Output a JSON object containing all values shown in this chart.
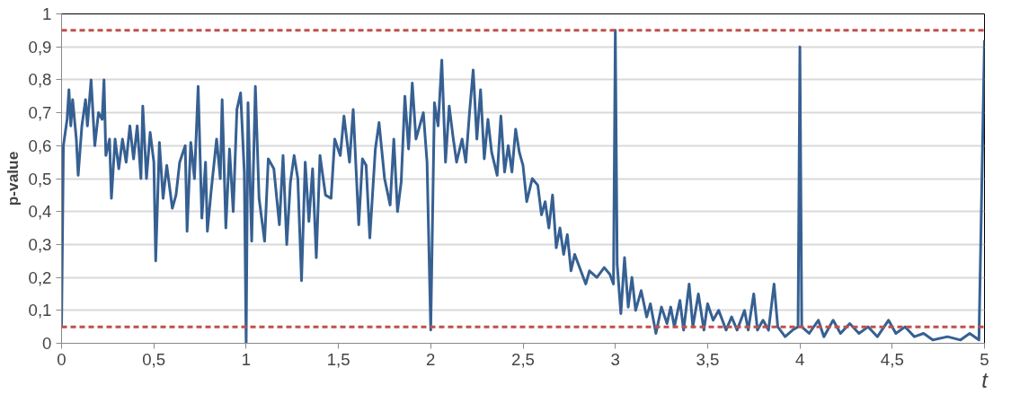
{
  "chart_data": {
    "type": "line",
    "xlabel": "t",
    "ylabel": "p-value",
    "xlim": [
      0,
      5
    ],
    "ylim": [
      0,
      1
    ],
    "xticks": [
      0,
      {
        "value": 0.5,
        "label": "0,5"
      },
      1,
      {
        "value": 1.5,
        "label": "1,5"
      },
      2,
      {
        "value": 2.5,
        "label": "2,5"
      },
      3,
      {
        "value": 3.5,
        "label": "3,5"
      },
      4,
      {
        "value": 4.5,
        "label": "4,5"
      },
      5
    ],
    "yticks": [
      0,
      {
        "value": 0.1,
        "label": "0,1"
      },
      {
        "value": 0.2,
        "label": "0,2"
      },
      {
        "value": 0.3,
        "label": "0,3"
      },
      {
        "value": 0.4,
        "label": "0,4"
      },
      {
        "value": 0.5,
        "label": "0,5"
      },
      {
        "value": 0.6,
        "label": "0,6"
      },
      {
        "value": 0.7,
        "label": "0,7"
      },
      {
        "value": 0.8,
        "label": "0,8"
      },
      {
        "value": 0.9,
        "label": "0,9"
      },
      1
    ],
    "grid": "y",
    "marker": "none",
    "line_style": "solid",
    "ref_lines": [
      {
        "axis": "y",
        "value": 0.05,
        "color": "#c0504d",
        "line_style": "dashed"
      },
      {
        "axis": "y",
        "value": 0.95,
        "color": "#c0504d",
        "line_style": "dashed"
      }
    ],
    "series": [
      {
        "color": "#366092",
        "x": [
          0,
          0.01,
          0.03,
          0.04,
          0.05,
          0.06,
          0.08,
          0.09,
          0.11,
          0.13,
          0.14,
          0.16,
          0.18,
          0.2,
          0.22,
          0.23,
          0.24,
          0.26,
          0.27,
          0.29,
          0.31,
          0.33,
          0.35,
          0.37,
          0.39,
          0.41,
          0.43,
          0.44,
          0.46,
          0.48,
          0.5,
          0.51,
          0.53,
          0.55,
          0.57,
          0.6,
          0.62,
          0.64,
          0.67,
          0.68,
          0.7,
          0.72,
          0.74,
          0.76,
          0.78,
          0.79,
          0.81,
          0.84,
          0.86,
          0.87,
          0.89,
          0.91,
          0.93,
          0.95,
          0.97,
          0.99,
          1.0,
          1.01,
          1.03,
          1.05,
          1.07,
          1.1,
          1.12,
          1.15,
          1.18,
          1.2,
          1.22,
          1.24,
          1.26,
          1.28,
          1.3,
          1.32,
          1.34,
          1.36,
          1.38,
          1.4,
          1.43,
          1.46,
          1.48,
          1.51,
          1.53,
          1.56,
          1.58,
          1.61,
          1.63,
          1.65,
          1.67,
          1.7,
          1.72,
          1.75,
          1.78,
          1.8,
          1.82,
          1.84,
          1.86,
          1.88,
          1.9,
          1.92,
          1.94,
          1.96,
          1.98,
          2.0,
          2.02,
          2.04,
          2.06,
          2.08,
          2.1,
          2.12,
          2.14,
          2.17,
          2.19,
          2.21,
          2.23,
          2.25,
          2.27,
          2.29,
          2.31,
          2.33,
          2.36,
          2.38,
          2.4,
          2.42,
          2.44,
          2.46,
          2.48,
          2.5,
          2.52,
          2.55,
          2.58,
          2.6,
          2.62,
          2.64,
          2.66,
          2.68,
          2.7,
          2.72,
          2.74,
          2.76,
          2.78,
          2.8,
          2.84,
          2.86,
          2.9,
          2.94,
          2.97,
          2.99,
          3.0,
          3.01,
          3.03,
          3.05,
          3.07,
          3.09,
          3.11,
          3.14,
          3.17,
          3.19,
          3.22,
          3.25,
          3.28,
          3.3,
          3.32,
          3.35,
          3.37,
          3.4,
          3.42,
          3.45,
          3.48,
          3.5,
          3.53,
          3.56,
          3.6,
          3.63,
          3.66,
          3.7,
          3.72,
          3.75,
          3.77,
          3.8,
          3.83,
          3.86,
          3.88,
          3.92,
          3.96,
          3.99,
          4.0,
          4.01,
          4.05,
          4.1,
          4.13,
          4.18,
          4.22,
          4.27,
          4.32,
          4.37,
          4.42,
          4.48,
          4.52,
          4.57,
          4.62,
          4.67,
          4.72,
          4.8,
          4.87,
          4.92,
          4.97,
          5.0
        ],
        "values": [
          0.05,
          0.6,
          0.68,
          0.77,
          0.66,
          0.74,
          0.62,
          0.51,
          0.66,
          0.74,
          0.66,
          0.8,
          0.6,
          0.7,
          0.68,
          0.8,
          0.57,
          0.62,
          0.44,
          0.62,
          0.53,
          0.62,
          0.55,
          0.66,
          0.56,
          0.66,
          0.5,
          0.72,
          0.5,
          0.64,
          0.55,
          0.25,
          0.61,
          0.44,
          0.54,
          0.41,
          0.45,
          0.55,
          0.6,
          0.34,
          0.61,
          0.5,
          0.78,
          0.38,
          0.55,
          0.34,
          0.46,
          0.62,
          0.5,
          0.74,
          0.35,
          0.59,
          0.4,
          0.71,
          0.76,
          0.52,
          0.0,
          0.73,
          0.31,
          0.78,
          0.44,
          0.31,
          0.56,
          0.53,
          0.36,
          0.57,
          0.3,
          0.49,
          0.57,
          0.5,
          0.19,
          0.55,
          0.37,
          0.53,
          0.26,
          0.57,
          0.45,
          0.44,
          0.62,
          0.57,
          0.69,
          0.55,
          0.71,
          0.36,
          0.56,
          0.54,
          0.32,
          0.59,
          0.67,
          0.5,
          0.42,
          0.62,
          0.4,
          0.49,
          0.75,
          0.59,
          0.79,
          0.62,
          0.66,
          0.7,
          0.55,
          0.04,
          0.73,
          0.66,
          0.86,
          0.55,
          0.72,
          0.63,
          0.55,
          0.62,
          0.55,
          0.7,
          0.83,
          0.62,
          0.77,
          0.56,
          0.68,
          0.58,
          0.51,
          0.69,
          0.52,
          0.6,
          0.52,
          0.65,
          0.58,
          0.54,
          0.43,
          0.5,
          0.48,
          0.39,
          0.43,
          0.35,
          0.45,
          0.29,
          0.35,
          0.27,
          0.33,
          0.22,
          0.27,
          0.24,
          0.18,
          0.22,
          0.2,
          0.23,
          0.21,
          0.18,
          0.95,
          0.24,
          0.09,
          0.26,
          0.11,
          0.2,
          0.1,
          0.16,
          0.08,
          0.12,
          0.03,
          0.11,
          0.06,
          0.11,
          0.05,
          0.13,
          0.04,
          0.18,
          0.05,
          0.15,
          0.04,
          0.12,
          0.07,
          0.1,
          0.04,
          0.08,
          0.04,
          0.1,
          0.04,
          0.15,
          0.04,
          0.07,
          0.04,
          0.18,
          0.05,
          0.02,
          0.04,
          0.05,
          0.9,
          0.05,
          0.03,
          0.07,
          0.02,
          0.07,
          0.03,
          0.06,
          0.03,
          0.05,
          0.02,
          0.07,
          0.03,
          0.05,
          0.02,
          0.03,
          0.01,
          0.02,
          0.01,
          0.03,
          0.01,
          0.92
        ]
      }
    ]
  }
}
